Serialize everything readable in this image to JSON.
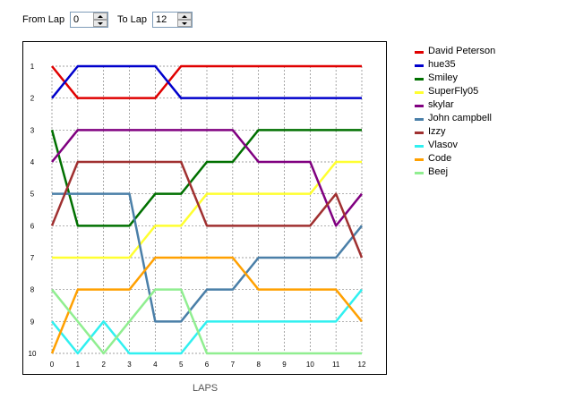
{
  "controls": {
    "from_label": "From Lap",
    "from_value": "0",
    "to_label": "To Lap",
    "to_value": "12"
  },
  "chart_data": {
    "type": "line",
    "title": "",
    "xlabel": "LAPS",
    "ylabel": "",
    "xlim": [
      0,
      12
    ],
    "ylim": [
      1,
      10
    ],
    "y_inverted": true,
    "grid": true,
    "legend_position": "right",
    "x": [
      0,
      1,
      2,
      3,
      4,
      5,
      6,
      7,
      8,
      9,
      10,
      11,
      12
    ],
    "x_ticks": [
      "0",
      "1",
      "2",
      "3",
      "4",
      "5",
      "6",
      "7",
      "8",
      "9",
      "10",
      "11",
      "12"
    ],
    "y_ticks": [
      "1",
      "2",
      "3",
      "4",
      "5",
      "6",
      "7",
      "8",
      "9",
      "10"
    ],
    "series": [
      {
        "name": "David Peterson",
        "color": "#e00000",
        "values": [
          1,
          2,
          2,
          2,
          2,
          1,
          1,
          1,
          1,
          1,
          1,
          1,
          1
        ]
      },
      {
        "name": "hue35",
        "color": "#0000cc",
        "values": [
          2,
          1,
          1,
          1,
          1,
          2,
          2,
          2,
          2,
          2,
          2,
          2,
          2
        ]
      },
      {
        "name": "Smiley",
        "color": "#007000",
        "values": [
          3,
          6,
          6,
          6,
          5,
          5,
          4,
          4,
          3,
          3,
          3,
          3,
          3
        ]
      },
      {
        "name": "SuperFly05",
        "color": "#ffff30",
        "values": [
          7,
          7,
          7,
          7,
          6,
          6,
          5,
          5,
          5,
          5,
          5,
          4,
          4
        ]
      },
      {
        "name": "skylar",
        "color": "#800080",
        "values": [
          4,
          3,
          3,
          3,
          3,
          3,
          3,
          3,
          4,
          4,
          4,
          6,
          5
        ]
      },
      {
        "name": "John campbell",
        "color": "#4a7fa8",
        "values": [
          5,
          5,
          5,
          5,
          9,
          9,
          8,
          8,
          7,
          7,
          7,
          7,
          6
        ]
      },
      {
        "name": "Izzy",
        "color": "#a03030",
        "values": [
          6,
          4,
          4,
          4,
          4,
          4,
          6,
          6,
          6,
          6,
          6,
          5,
          7
        ]
      },
      {
        "name": "Vlasov",
        "color": "#30f0f0",
        "values": [
          9,
          10,
          9,
          10,
          10,
          10,
          9,
          9,
          9,
          9,
          9,
          9,
          8
        ]
      },
      {
        "name": "Code",
        "color": "#ffa000",
        "values": [
          10,
          8,
          8,
          8,
          7,
          7,
          7,
          7,
          8,
          8,
          8,
          8,
          9
        ]
      },
      {
        "name": "Beej",
        "color": "#90ee90",
        "values": [
          8,
          9,
          10,
          9,
          8,
          8,
          10,
          10,
          10,
          10,
          10,
          10,
          10
        ]
      }
    ]
  }
}
